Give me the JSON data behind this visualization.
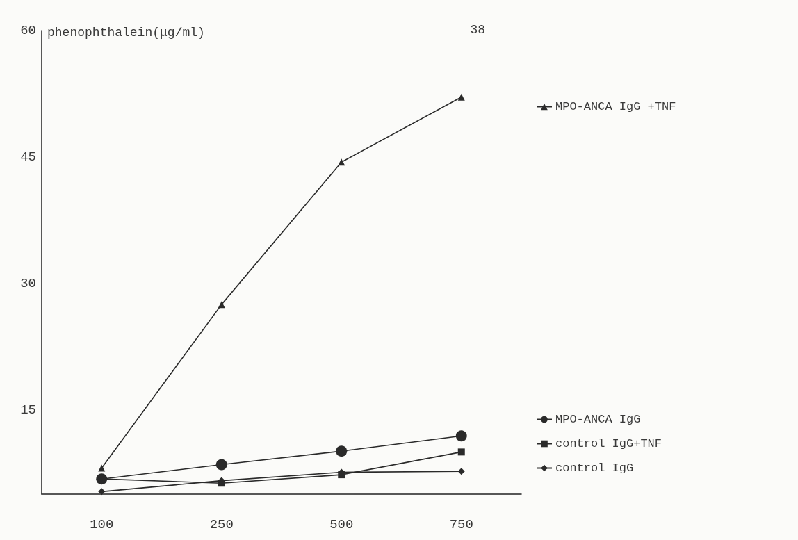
{
  "chart_data": {
    "type": "line",
    "ylabel": "phenophthalein(μg/ml)",
    "annotations": [
      "38"
    ],
    "categories": [
      "100",
      "250",
      "500",
      "750"
    ],
    "ylim": [
      5,
      60
    ],
    "yticks": [
      15,
      30,
      45,
      60
    ],
    "grid": false,
    "legend": "right",
    "series": [
      {
        "name": "MPO-ANCA IgG +TNF",
        "color": "#2a2a2a",
        "marker": "triangle",
        "values": [
          8.1,
          27.5,
          44.4,
          52.1
        ]
      },
      {
        "name": "MPO-ANCA IgG",
        "color": "#2a2a2a",
        "marker": "circle",
        "values": [
          6.8,
          8.5,
          10.1,
          11.9
        ]
      },
      {
        "name": "control IgG+TNF",
        "color": "#2a2a2a",
        "marker": "square",
        "values": [
          6.8,
          6.3,
          7.3,
          10.0
        ]
      },
      {
        "name": "control IgG",
        "color": "#2a2a2a",
        "marker": "diamond",
        "values": [
          5.3,
          6.6,
          7.6,
          7.7
        ]
      }
    ]
  }
}
